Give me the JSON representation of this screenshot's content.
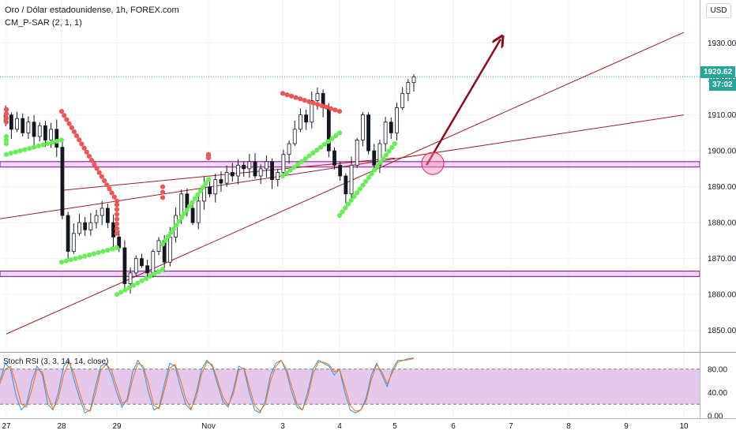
{
  "header": {
    "title": "Oro / Dólar estadounidense, 1h, FOREX.com",
    "indicator": "CM_P-SAR (2, 1, 1)"
  },
  "scale_button": "USD",
  "current_price": {
    "value": "1920.62",
    "countdown": "37:02",
    "color": "#26a69a"
  },
  "rsi_panel": {
    "label": "Stoch RSI (3, 3, 14, 14, close)"
  },
  "colors": {
    "up_candle": "#131722",
    "sar_up": "#66ee55",
    "sar_down": "#ee5555",
    "zone": "#9c27b0",
    "trendline": "#a01e1e",
    "arrow": "#8b0d1a",
    "rsi_k": "#2196f3",
    "rsi_d": "#ff6d00",
    "rsi_band": "#e1bee7"
  },
  "chart_data": [
    {
      "type": "candlestick",
      "title": "Oro / Dólar estadounidense, 1h, FOREX.com",
      "ylim": [
        1844,
        1942
      ],
      "y_ticks": [
        1850.0,
        1860.0,
        1870.0,
        1880.0,
        1890.0,
        1900.0,
        1910.0,
        1920.0,
        1930.0
      ],
      "x_ticks": [
        "27",
        "28",
        "29",
        "Nov",
        "3",
        "4",
        "5",
        "6",
        "7",
        "8",
        "9",
        "10"
      ],
      "last_price": 1920.62,
      "horizontal_zones": [
        [
          1895.5,
          1897.0
        ],
        [
          1865.0,
          1866.5
        ]
      ],
      "trendlines": [
        {
          "from": [
            "26",
            1879.0
          ],
          "to": [
            "10",
            1910.0
          ]
        },
        {
          "from": [
            "27",
            1849.0
          ],
          "to": [
            "10",
            1933.0
          ]
        },
        {
          "from": [
            "28",
            1889.0
          ],
          "to": [
            "5",
            1898.0
          ]
        }
      ],
      "arrow": {
        "from": [
          "5",
          1896.0
        ],
        "to": [
          "6",
          1930.0
        ]
      },
      "circle_marker": {
        "x": "5",
        "y": 1896.5
      },
      "price_path": [
        [
          "27",
          1908
        ],
        [
          "27",
          1910
        ],
        [
          "27",
          1906
        ],
        [
          "27",
          1909
        ],
        [
          "27",
          1905
        ],
        [
          "27",
          1908
        ],
        [
          "27",
          1904
        ],
        [
          "27",
          1907
        ],
        [
          "27",
          1903
        ],
        [
          "27",
          1906
        ],
        [
          "28",
          1901
        ],
        [
          "28",
          1882
        ],
        [
          "28",
          1872
        ],
        [
          "28",
          1877
        ],
        [
          "28",
          1880
        ],
        [
          "28",
          1878
        ],
        [
          "28",
          1880
        ],
        [
          "28",
          1882
        ],
        [
          "28",
          1884
        ],
        [
          "28",
          1880
        ],
        [
          "29",
          1876
        ],
        [
          "29",
          1873
        ],
        [
          "29",
          1863
        ],
        [
          "29",
          1866
        ],
        [
          "29",
          1870
        ],
        [
          "29",
          1868
        ],
        [
          "29",
          1866
        ],
        [
          "29",
          1872
        ],
        [
          "29",
          1875
        ],
        [
          "29",
          1869
        ],
        [
          "30",
          1876
        ],
        [
          "30",
          1882
        ],
        [
          "30",
          1888
        ],
        [
          "30",
          1884
        ],
        [
          "30",
          1880
        ],
        [
          "30",
          1886
        ],
        [
          "30",
          1890
        ],
        [
          "30",
          1888
        ],
        [
          "30",
          1892
        ],
        [
          "30",
          1891
        ],
        [
          "Nov",
          1894
        ],
        [
          "Nov",
          1893
        ],
        [
          "Nov",
          1896
        ],
        [
          "Nov",
          1895
        ],
        [
          "Nov",
          1897
        ],
        [
          "Nov",
          1893
        ],
        [
          "Nov",
          1895
        ],
        [
          "Nov",
          1897
        ],
        [
          "Nov",
          1892
        ],
        [
          "Nov",
          1894
        ],
        [
          "3",
          1899
        ],
        [
          "3",
          1902
        ],
        [
          "3",
          1906
        ],
        [
          "3",
          1910
        ],
        [
          "3",
          1908
        ],
        [
          "3",
          1914
        ],
        [
          "3",
          1916
        ],
        [
          "3",
          1912
        ],
        [
          "3",
          1900
        ],
        [
          "3",
          1896
        ],
        [
          "4",
          1893
        ],
        [
          "4",
          1888
        ],
        [
          "4",
          1896
        ],
        [
          "4",
          1903
        ],
        [
          "4",
          1910
        ],
        [
          "4",
          1900
        ],
        [
          "4",
          1896
        ],
        [
          "4",
          1902
        ],
        [
          "4",
          1908
        ],
        [
          "4",
          1905
        ],
        [
          "5",
          1912
        ],
        [
          "5",
          1916
        ],
        [
          "5",
          1919
        ],
        [
          "5",
          1920.62
        ]
      ],
      "sar_up_segments": [
        [
          [
            "27",
            1902.0
          ],
          [
            "27",
            1904.0
          ]
        ],
        [
          [
            "27",
            1899.0
          ],
          [
            "28",
            1903.0
          ]
        ],
        [
          [
            "28",
            1869.0
          ],
          [
            "29",
            1873.0
          ]
        ],
        [
          [
            "29",
            1860.0
          ],
          [
            "30",
            1867.0
          ]
        ],
        [
          [
            "30",
            1874.0
          ],
          [
            "Nov",
            1892.0
          ]
        ],
        [
          [
            "3",
            1893.0
          ],
          [
            "4",
            1905.0
          ]
        ],
        [
          [
            "4",
            1882.0
          ],
          [
            "5",
            1902.0
          ]
        ]
      ],
      "sar_down_segments": [
        [
          [
            "27",
            1911.5
          ],
          [
            "27",
            1909.0
          ]
        ],
        [
          [
            "27",
            1911.5
          ],
          [
            "27",
            1908.0
          ]
        ],
        [
          [
            "28",
            1911.0
          ],
          [
            "29",
            1886.0
          ]
        ],
        [
          [
            "29",
            1885.0
          ],
          [
            "29",
            1877.0
          ]
        ],
        [
          [
            "30",
            1890.0
          ],
          [
            "30",
            1887.0
          ]
        ],
        [
          [
            "Nov",
            1899.0
          ],
          [
            "Nov",
            1898.0
          ]
        ],
        [
          [
            "3",
            1916.0
          ],
          [
            "4",
            1911.0
          ]
        ]
      ]
    },
    {
      "type": "line",
      "title": "Stoch RSI (3, 3, 14, 14, close)",
      "ylim": [
        -4,
        108
      ],
      "y_ticks": [
        0.0,
        40.0,
        80.0
      ],
      "band": [
        20,
        80
      ],
      "series": [
        {
          "color": "#2196f3",
          "values": [
            60,
            90,
            80,
            35,
            10,
            20,
            60,
            85,
            70,
            20,
            10,
            40,
            85,
            95,
            60,
            30,
            5,
            10,
            50,
            85,
            90,
            70,
            40,
            15,
            30,
            75,
            95,
            80,
            40,
            10,
            15,
            55,
            90,
            85,
            50,
            20,
            10,
            40,
            80,
            95,
            85,
            55,
            25,
            15,
            45,
            85,
            80,
            40,
            10,
            5,
            25,
            70,
            90,
            95,
            75,
            40,
            15,
            10,
            40,
            80,
            95,
            90,
            85,
            70,
            80,
            40,
            10,
            5,
            10,
            30,
            70,
            90,
            70,
            50,
            80,
            95,
            95,
            98,
            99
          ]
        },
        {
          "color": "#ff6d00",
          "values": [
            55,
            80,
            85,
            55,
            20,
            15,
            45,
            80,
            75,
            35,
            12,
            30,
            70,
            92,
            72,
            40,
            12,
            8,
            38,
            78,
            88,
            78,
            50,
            22,
            25,
            62,
            90,
            85,
            55,
            18,
            12,
            45,
            82,
            88,
            62,
            30,
            12,
            32,
            72,
            92,
            88,
            62,
            32,
            18,
            38,
            78,
            82,
            50,
            18,
            8,
            20,
            60,
            85,
            95,
            80,
            50,
            20,
            10,
            32,
            72,
            92,
            92,
            88,
            75,
            80,
            50,
            18,
            8,
            10,
            25,
            62,
            88,
            75,
            55,
            75,
            92,
            95,
            96,
            98
          ]
        }
      ]
    }
  ]
}
